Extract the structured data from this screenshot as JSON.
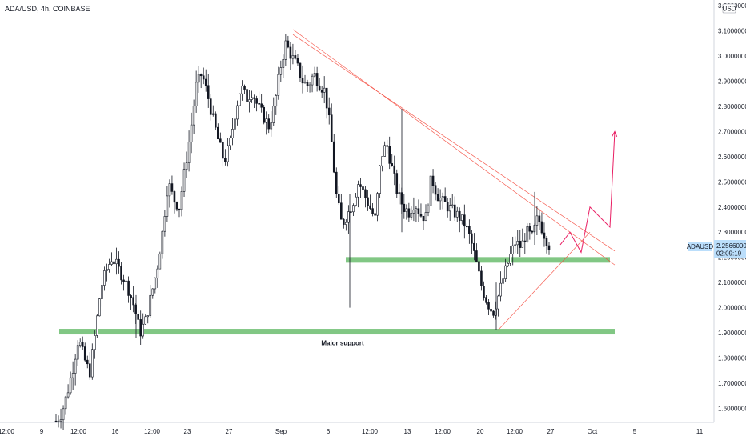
{
  "chart_data": {
    "type": "candlestick",
    "title": "ADA/USD, 4h, COINBASE",
    "currency_label": "USD",
    "symbol": "ADAUSD",
    "last_price": "2.25660000",
    "countdown": "02:09:19",
    "ylim": [
      1.535,
      3.2
    ],
    "y_ticks": [
      "3.20000000",
      "3.10000000",
      "3.00000000",
      "2.90000000",
      "2.80000000",
      "2.70000000",
      "2.60000000",
      "2.50000000",
      "2.40000000",
      "2.30000000",
      "2.20000000",
      "2.10000000",
      "2.00000000",
      "1.90000000",
      "1.80000000",
      "1.70000000",
      "1.60000000"
    ],
    "x_ticks": [
      "12:00",
      "9",
      "12:00",
      "16",
      "12:00",
      "23",
      "27",
      "Sep",
      "6",
      "12:00",
      "13",
      "12:00",
      "20",
      "12:00",
      "27",
      "Oct",
      "5",
      "11"
    ],
    "price_path": [
      [
        0,
        1.55
      ],
      [
        1,
        1.58
      ],
      [
        2,
        1.66
      ],
      [
        3,
        1.76
      ],
      [
        4,
        1.88
      ],
      [
        5,
        1.8
      ],
      [
        6,
        1.74
      ],
      [
        7,
        1.9
      ],
      [
        8,
        2.08
      ],
      [
        9,
        2.15
      ],
      [
        10,
        2.2
      ],
      [
        11,
        2.16
      ],
      [
        12,
        2.12
      ],
      [
        13,
        2.07
      ],
      [
        14,
        2.0
      ],
      [
        15,
        1.9
      ],
      [
        16,
        1.95
      ],
      [
        17,
        2.05
      ],
      [
        18,
        2.15
      ],
      [
        19,
        2.3
      ],
      [
        20,
        2.5
      ],
      [
        21,
        2.43
      ],
      [
        22,
        2.4
      ],
      [
        23,
        2.55
      ],
      [
        24,
        2.7
      ],
      [
        25,
        2.88
      ],
      [
        26,
        2.93
      ],
      [
        27,
        2.85
      ],
      [
        28,
        2.75
      ],
      [
        29,
        2.66
      ],
      [
        30,
        2.58
      ],
      [
        31,
        2.65
      ],
      [
        32,
        2.78
      ],
      [
        33,
        2.88
      ],
      [
        34,
        2.83
      ],
      [
        35,
        2.86
      ],
      [
        36,
        2.8
      ],
      [
        37,
        2.76
      ],
      [
        38,
        2.72
      ],
      [
        39,
        2.8
      ],
      [
        40,
        2.95
      ],
      [
        41,
        3.05
      ],
      [
        42,
        3.0
      ],
      [
        43,
        2.96
      ],
      [
        44,
        2.9
      ],
      [
        45,
        2.88
      ],
      [
        46,
        2.93
      ],
      [
        47,
        2.89
      ],
      [
        48,
        2.86
      ],
      [
        49,
        2.7
      ],
      [
        50,
        2.45
      ],
      [
        51,
        2.33
      ],
      [
        52,
        2.37
      ],
      [
        53,
        2.42
      ],
      [
        54,
        2.5
      ],
      [
        55,
        2.45
      ],
      [
        56,
        2.4
      ],
      [
        57,
        2.35
      ],
      [
        58,
        2.6
      ],
      [
        59,
        2.65
      ],
      [
        60,
        2.55
      ],
      [
        61,
        2.45
      ],
      [
        62,
        2.4
      ],
      [
        63,
        2.38
      ],
      [
        64,
        2.42
      ],
      [
        65,
        2.37
      ],
      [
        66,
        2.36
      ],
      [
        67,
        2.52
      ],
      [
        68,
        2.45
      ],
      [
        69,
        2.42
      ],
      [
        70,
        2.4
      ],
      [
        71,
        2.38
      ],
      [
        72,
        2.36
      ],
      [
        73,
        2.33
      ],
      [
        74,
        2.27
      ],
      [
        75,
        2.18
      ],
      [
        76,
        2.08
      ],
      [
        77,
        2.02
      ],
      [
        78,
        1.98
      ],
      [
        79,
        2.05
      ],
      [
        80,
        2.13
      ],
      [
        81,
        2.2
      ],
      [
        82,
        2.26
      ],
      [
        83,
        2.24
      ],
      [
        84,
        2.3
      ],
      [
        85,
        2.28
      ],
      [
        86,
        2.36
      ],
      [
        87,
        2.3
      ],
      [
        88,
        2.25
      ]
    ],
    "support_zones": [
      {
        "label": "",
        "price": 2.19,
        "from_date": "Sep 7",
        "to_date": "Oct 2"
      },
      {
        "label": "Major support",
        "price": 1.905,
        "from_date": "Aug 10",
        "to_date": "Oct 5"
      }
    ],
    "trendlines": [
      {
        "color": "#f44336",
        "style": "resistance-1",
        "from": [
          3.105,
          "Sep 1"
        ],
        "to": [
          2.17,
          "Oct 4"
        ]
      },
      {
        "color": "#f44336",
        "style": "resistance-2",
        "from": [
          3.085,
          "Sep 1"
        ],
        "to": [
          2.225,
          "Oct 4"
        ]
      },
      {
        "color": "#f44336",
        "style": "rising-support",
        "from": [
          1.91,
          "Sep 21"
        ],
        "to": [
          2.3,
          "Oct 1"
        ]
      }
    ],
    "projection": {
      "color": "#e91e63",
      "path": [
        [
          2.25,
          "Sep 28"
        ],
        [
          2.3,
          "Sep 29"
        ],
        [
          2.22,
          "Sep 30"
        ],
        [
          2.4,
          "Oct 1"
        ],
        [
          2.32,
          "Oct 2"
        ],
        [
          2.7,
          "Oct 4"
        ]
      ]
    },
    "colors": {
      "up": "#131722",
      "down": "#131722",
      "support": "#81c784",
      "trend": "#f44336",
      "projection": "#e91e63",
      "price_tag": "#bbdefb"
    }
  }
}
